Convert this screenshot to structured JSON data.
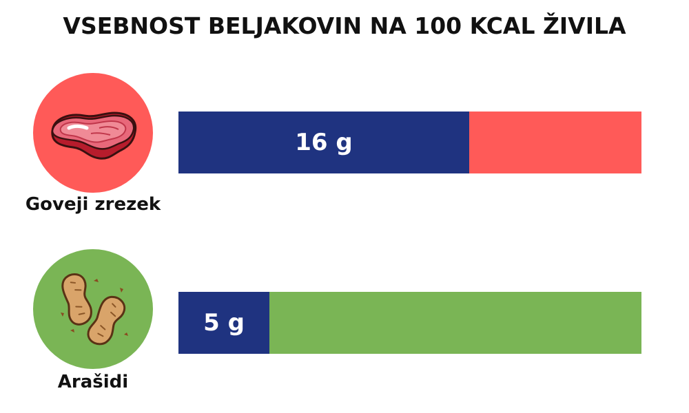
{
  "chart_data": {
    "type": "bar",
    "orientation": "horizontal",
    "title": "VSEBNOST BELJAKOVIN NA 100 KCAL ŽIVILA",
    "xlim": [
      0,
      25.5
    ],
    "grid": false,
    "categories": [
      "Goveji zrezek",
      "Arašidi"
    ],
    "values": [
      16,
      5
    ],
    "value_labels": [
      "16 g",
      "5 g"
    ],
    "unit": "g",
    "bar_color": "#1f3380",
    "track_colors": [
      "#ff5a58",
      "#7ab555"
    ],
    "icons": [
      "steak-icon",
      "peanuts-icon"
    ]
  }
}
